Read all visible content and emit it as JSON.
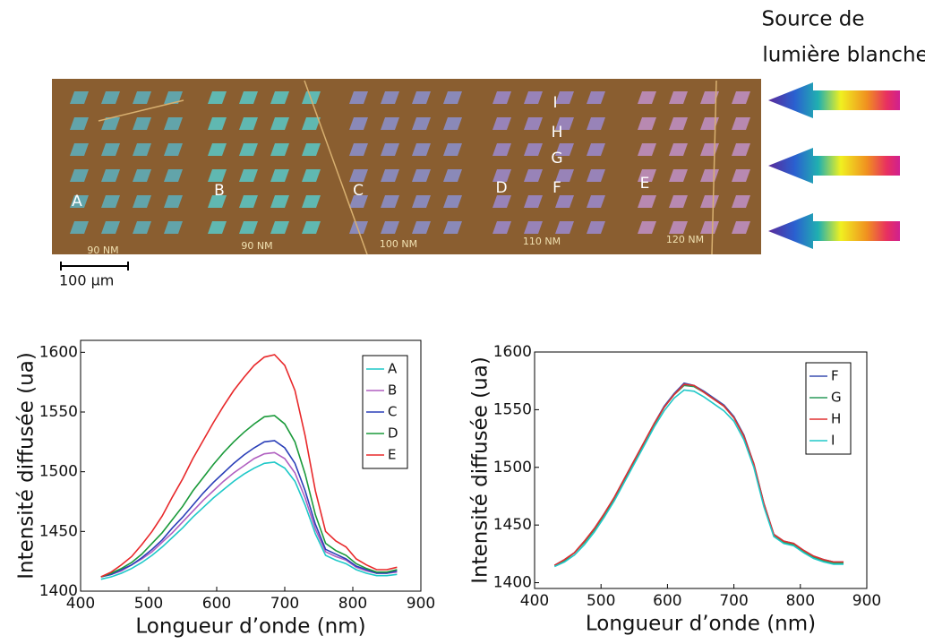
{
  "figure": {
    "source_label": [
      "Source de",
      "lumière blanche"
    ],
    "scale_bar": "100 µm",
    "markers": [
      "A",
      "B",
      "C",
      "D",
      "E",
      "F",
      "G",
      "H",
      "I"
    ],
    "chip_labels": [
      "90 NM",
      "90 NM",
      "100 NM",
      "110 NM",
      "120 NM"
    ]
  },
  "chart_data": [
    {
      "type": "line",
      "xlabel": "Longueur d’onde (nm)",
      "ylabel": "Intensité diffusée (ua)",
      "x": [
        430,
        445,
        460,
        475,
        490,
        505,
        520,
        535,
        550,
        565,
        580,
        595,
        610,
        625,
        640,
        655,
        670,
        685,
        700,
        715,
        730,
        745,
        760,
        775,
        790,
        805,
        820,
        835,
        850,
        865
      ],
      "xlim": [
        400,
        900
      ],
      "xticks": [
        400,
        500,
        600,
        700,
        800,
        900
      ],
      "ylim": [
        1400,
        1610
      ],
      "yticks": [
        1400,
        1450,
        1500,
        1550,
        1600
      ],
      "legend": "upper right",
      "series": [
        {
          "name": "A",
          "color": "#1ec8c8",
          "values": [
            1410,
            1412,
            1415,
            1419,
            1424,
            1430,
            1437,
            1445,
            1453,
            1462,
            1470,
            1478,
            1485,
            1492,
            1498,
            1503,
            1507,
            1508,
            1503,
            1492,
            1472,
            1448,
            1430,
            1426,
            1423,
            1418,
            1415,
            1413,
            1413,
            1414
          ]
        },
        {
          "name": "B",
          "color": "#b05fc0",
          "values": [
            1412,
            1414,
            1417,
            1422,
            1427,
            1433,
            1441,
            1449,
            1458,
            1467,
            1476,
            1484,
            1492,
            1499,
            1505,
            1511,
            1515,
            1516,
            1511,
            1499,
            1478,
            1452,
            1433,
            1429,
            1426,
            1420,
            1417,
            1415,
            1415,
            1416
          ]
        },
        {
          "name": "C",
          "color": "#2a3fb8",
          "values": [
            1412,
            1414,
            1418,
            1422,
            1428,
            1435,
            1443,
            1453,
            1462,
            1472,
            1482,
            1491,
            1499,
            1507,
            1514,
            1520,
            1525,
            1526,
            1520,
            1507,
            1484,
            1456,
            1435,
            1431,
            1427,
            1421,
            1418,
            1415,
            1415,
            1417
          ]
        },
        {
          "name": "D",
          "color": "#1a9a3a",
          "values": [
            1412,
            1415,
            1419,
            1424,
            1431,
            1440,
            1449,
            1460,
            1471,
            1484,
            1495,
            1506,
            1516,
            1525,
            1533,
            1540,
            1546,
            1547,
            1540,
            1525,
            1498,
            1464,
            1440,
            1434,
            1430,
            1423,
            1419,
            1416,
            1416,
            1418
          ]
        },
        {
          "name": "E",
          "color": "#e8282a",
          "values": [
            1412,
            1416,
            1422,
            1429,
            1439,
            1450,
            1463,
            1479,
            1494,
            1511,
            1526,
            1541,
            1555,
            1568,
            1579,
            1589,
            1596,
            1598,
            1589,
            1568,
            1530,
            1484,
            1450,
            1442,
            1437,
            1427,
            1422,
            1418,
            1418,
            1420
          ]
        }
      ]
    },
    {
      "type": "line",
      "xlabel": "Longueur d’onde (nm)",
      "ylabel": "Intensité diffusée (ua)",
      "x": [
        430,
        445,
        460,
        475,
        490,
        505,
        520,
        535,
        550,
        565,
        580,
        595,
        610,
        625,
        640,
        655,
        670,
        685,
        700,
        715,
        730,
        745,
        760,
        775,
        790,
        805,
        820,
        835,
        850,
        865
      ],
      "xlim": [
        400,
        900
      ],
      "xticks": [
        400,
        500,
        600,
        700,
        800,
        900
      ],
      "ylim": [
        1395,
        1600
      ],
      "yticks": [
        1400,
        1450,
        1500,
        1550,
        1600
      ],
      "legend": "upper right",
      "series": [
        {
          "name": "F",
          "color": "#3a4fb0",
          "values": [
            1415,
            1420,
            1426,
            1436,
            1447,
            1460,
            1474,
            1490,
            1506,
            1522,
            1538,
            1553,
            1564,
            1573,
            1571,
            1566,
            1560,
            1554,
            1544,
            1528,
            1503,
            1469,
            1442,
            1436,
            1434,
            1428,
            1423,
            1420,
            1418,
            1418
          ]
        },
        {
          "name": "G",
          "color": "#2a9a5a",
          "values": [
            1415,
            1419,
            1426,
            1435,
            1446,
            1459,
            1473,
            1489,
            1505,
            1521,
            1537,
            1552,
            1563,
            1571,
            1570,
            1565,
            1559,
            1553,
            1543,
            1527,
            1502,
            1468,
            1441,
            1435,
            1433,
            1427,
            1422,
            1419,
            1417,
            1417
          ]
        },
        {
          "name": "H",
          "color": "#e03030",
          "values": [
            1415,
            1420,
            1426,
            1436,
            1447,
            1460,
            1474,
            1490,
            1506,
            1522,
            1538,
            1552,
            1563,
            1572,
            1571,
            1565,
            1559,
            1553,
            1543,
            1527,
            1503,
            1469,
            1442,
            1436,
            1434,
            1428,
            1423,
            1420,
            1418,
            1418
          ]
        },
        {
          "name": "I",
          "color": "#20c8c8",
          "values": [
            1414,
            1418,
            1424,
            1433,
            1444,
            1457,
            1471,
            1487,
            1503,
            1519,
            1535,
            1549,
            1560,
            1567,
            1566,
            1561,
            1555,
            1549,
            1540,
            1524,
            1500,
            1466,
            1440,
            1434,
            1432,
            1426,
            1421,
            1418,
            1416,
            1416
          ]
        }
      ]
    }
  ]
}
